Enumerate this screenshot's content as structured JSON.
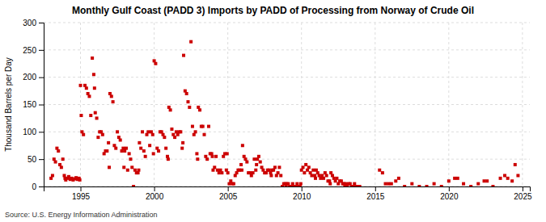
{
  "chart_data": {
    "type": "scatter",
    "title": "Monthly Gulf Coast (PADD 3) Imports by PADD of Processing from Norway of Crude Oil",
    "ylabel": "Thousand Barrels per Day",
    "annotations": [
      "Source: U.S. Energy Information Administration"
    ],
    "color": "#cc0000",
    "marker": "square",
    "grid": true,
    "xlim": [
      1992.5,
      2025.5
    ],
    "ylim": [
      0,
      300
    ],
    "xticks": [
      1995,
      2000,
      2005,
      2010,
      2015,
      2020,
      2025
    ],
    "yticks": [
      0,
      50,
      100,
      150,
      200,
      250,
      300
    ],
    "x": [
      1993.0,
      1993.1,
      1993.2,
      1993.3,
      1993.4,
      1993.5,
      1993.6,
      1993.7,
      1993.8,
      1993.9,
      1993.95,
      1994.0,
      1994.1,
      1994.2,
      1994.3,
      1994.4,
      1994.5,
      1994.6,
      1994.7,
      1994.8,
      1994.9,
      1994.95,
      1995.0,
      1995.05,
      1995.1,
      1995.2,
      1995.3,
      1995.4,
      1995.5,
      1995.6,
      1995.7,
      1995.8,
      1995.9,
      1995.95,
      1996.0,
      1996.1,
      1996.2,
      1996.3,
      1996.4,
      1996.5,
      1996.6,
      1996.7,
      1996.8,
      1996.9,
      1996.95,
      1997.0,
      1997.1,
      1997.2,
      1997.3,
      1997.4,
      1997.5,
      1997.6,
      1997.7,
      1997.8,
      1997.9,
      1997.95,
      1998.0,
      1998.1,
      1998.2,
      1998.3,
      1998.4,
      1998.5,
      1998.6,
      1998.7,
      1998.8,
      1998.9,
      1998.95,
      1999.0,
      1999.1,
      1999.2,
      1999.3,
      1999.4,
      1999.5,
      1999.6,
      1999.7,
      1999.8,
      1999.9,
      1999.95,
      2000.0,
      2000.1,
      2000.2,
      2000.3,
      2000.4,
      2000.5,
      2000.6,
      2000.7,
      2000.8,
      2000.9,
      2000.95,
      2001.0,
      2001.1,
      2001.2,
      2001.3,
      2001.4,
      2001.5,
      2001.6,
      2001.7,
      2001.8,
      2001.9,
      2001.95,
      2002.0,
      2002.1,
      2002.2,
      2002.3,
      2002.4,
      2002.5,
      2002.6,
      2002.7,
      2002.8,
      2002.9,
      2002.95,
      2003.0,
      2003.1,
      2003.2,
      2003.3,
      2003.4,
      2003.5,
      2003.6,
      2003.7,
      2003.8,
      2003.9,
      2003.95,
      2004.0,
      2004.1,
      2004.2,
      2004.3,
      2004.4,
      2004.5,
      2004.6,
      2004.7,
      2004.8,
      2004.9,
      2004.95,
      2005.0,
      2005.1,
      2005.2,
      2005.3,
      2005.4,
      2005.5,
      2005.6,
      2005.7,
      2005.8,
      2005.9,
      2005.95,
      2006.0,
      2006.1,
      2006.2,
      2006.3,
      2006.4,
      2006.5,
      2006.6,
      2006.7,
      2006.8,
      2006.9,
      2006.95,
      2007.0,
      2007.1,
      2007.2,
      2007.3,
      2007.4,
      2007.5,
      2007.6,
      2007.7,
      2007.8,
      2007.9,
      2007.95,
      2008.0,
      2008.1,
      2008.2,
      2008.3,
      2008.4,
      2008.5,
      2008.6,
      2008.7,
      2008.8,
      2008.9,
      2008.95,
      2009.0,
      2009.1,
      2009.2,
      2009.3,
      2009.4,
      2009.5,
      2009.6,
      2009.7,
      2009.8,
      2009.9,
      2009.95,
      2010.0,
      2010.1,
      2010.2,
      2010.3,
      2010.4,
      2010.5,
      2010.6,
      2010.7,
      2010.8,
      2010.9,
      2010.95,
      2011.0,
      2011.1,
      2011.2,
      2011.3,
      2011.4,
      2011.5,
      2011.6,
      2011.7,
      2011.8,
      2011.9,
      2011.95,
      2012.0,
      2012.1,
      2012.2,
      2012.3,
      2012.4,
      2012.5,
      2012.6,
      2012.7,
      2012.8,
      2012.9,
      2012.95,
      2013.0,
      2013.1,
      2013.2,
      2013.3,
      2013.4,
      2013.5,
      2013.6,
      2013.7,
      2013.8,
      2013.9,
      2013.95,
      2015.3,
      2015.5,
      2015.7,
      2015.9,
      2016.1,
      2016.4,
      2016.6,
      2017.0,
      2017.5,
      2018.0,
      2018.5,
      2019.0,
      2019.5,
      2020.0,
      2020.4,
      2020.6,
      2021.0,
      2021.5,
      2022.0,
      2022.4,
      2022.6,
      2023.0,
      2023.5,
      2023.8,
      2024.0,
      2024.3,
      2024.5,
      2024.7
    ],
    "values": [
      15,
      20,
      50,
      45,
      70,
      65,
      40,
      35,
      50,
      20,
      15,
      12,
      15,
      18,
      13,
      15,
      12,
      14,
      16,
      13,
      15,
      12,
      185,
      130,
      100,
      95,
      185,
      180,
      170,
      165,
      130,
      235,
      205,
      180,
      135,
      125,
      90,
      100,
      100,
      95,
      60,
      65,
      65,
      80,
      35,
      170,
      165,
      155,
      75,
      70,
      100,
      90,
      85,
      65,
      70,
      35,
      65,
      70,
      30,
      60,
      50,
      35,
      0,
      30,
      25,
      25,
      30,
      80,
      70,
      100,
      65,
      55,
      95,
      100,
      75,
      100,
      95,
      60,
      230,
      225,
      70,
      65,
      100,
      100,
      95,
      90,
      70,
      55,
      50,
      145,
      140,
      105,
      95,
      90,
      100,
      95,
      100,
      100,
      70,
      80,
      240,
      175,
      170,
      155,
      145,
      265,
      110,
      95,
      100,
      60,
      50,
      145,
      140,
      110,
      110,
      95,
      55,
      50,
      110,
      60,
      60,
      55,
      30,
      35,
      55,
      30,
      25,
      30,
      25,
      55,
      60,
      30,
      60,
      25,
      5,
      10,
      5,
      5,
      20,
      25,
      30,
      30,
      40,
      30,
      75,
      55,
      50,
      45,
      25,
      25,
      20,
      25,
      50,
      30,
      40,
      50,
      55,
      45,
      35,
      30,
      25,
      25,
      30,
      30,
      25,
      20,
      30,
      30,
      35,
      20,
      25,
      35,
      20,
      0,
      5,
      5,
      0,
      5,
      5,
      0,
      0,
      5,
      0,
      0,
      5,
      0,
      0,
      5,
      30,
      35,
      25,
      40,
      30,
      35,
      25,
      20,
      30,
      20,
      15,
      30,
      25,
      20,
      15,
      20,
      15,
      25,
      20,
      10,
      10,
      5,
      25,
      20,
      15,
      10,
      15,
      5,
      10,
      10,
      5,
      5,
      0,
      5,
      0,
      5,
      5,
      0,
      0,
      5,
      0,
      0,
      0,
      0,
      30,
      25,
      5,
      5,
      5,
      10,
      15,
      0,
      5,
      0,
      0,
      5,
      0,
      10,
      15,
      15,
      5,
      0,
      5,
      10,
      10,
      0,
      15,
      20,
      15,
      10,
      40,
      20
    ]
  }
}
